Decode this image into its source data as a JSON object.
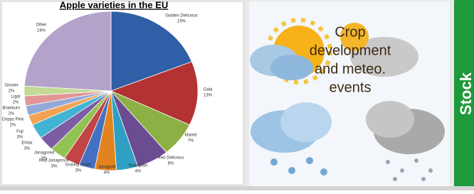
{
  "chart_data": {
    "type": "pie",
    "title": "Apple varieties  in the EU",
    "categories": [
      "Golden Delicious",
      "Gala",
      "Idared",
      "Red Delicious",
      "Shampion",
      "Jonagold",
      "Granny Smith",
      "Red Jonaprince",
      "Jonagored",
      "Elstar",
      "Fuji",
      "Cripps Pink",
      "Braeburn",
      "Ligol",
      "Gloster",
      "Other"
    ],
    "values": [
      19,
      13,
      7,
      6,
      4,
      4,
      3,
      3,
      3,
      3,
      3,
      2,
      2,
      2,
      2,
      24
    ],
    "value_labels": [
      "19%",
      "13%",
      "7%",
      "6%",
      "4%",
      "4%",
      "3%",
      "3%",
      "3%",
      "3%",
      "3%",
      "2%",
      "2%",
      "2%",
      "2%",
      "24%"
    ],
    "colors": [
      "#2f5fa6",
      "#b33232",
      "#8cb043",
      "#6b4c93",
      "#2fa0c4",
      "#e3831f",
      "#4571c2",
      "#c24444",
      "#93c254",
      "#7c5ca3",
      "#43b3d3",
      "#f2a352",
      "#93aad9",
      "#e39696",
      "#c3da95",
      "#b3a3cb"
    ]
  },
  "weather_panel": {
    "lines": [
      "Crop",
      "development",
      "and meteo.",
      "events"
    ]
  },
  "side_panel": {
    "text": "Stock"
  }
}
